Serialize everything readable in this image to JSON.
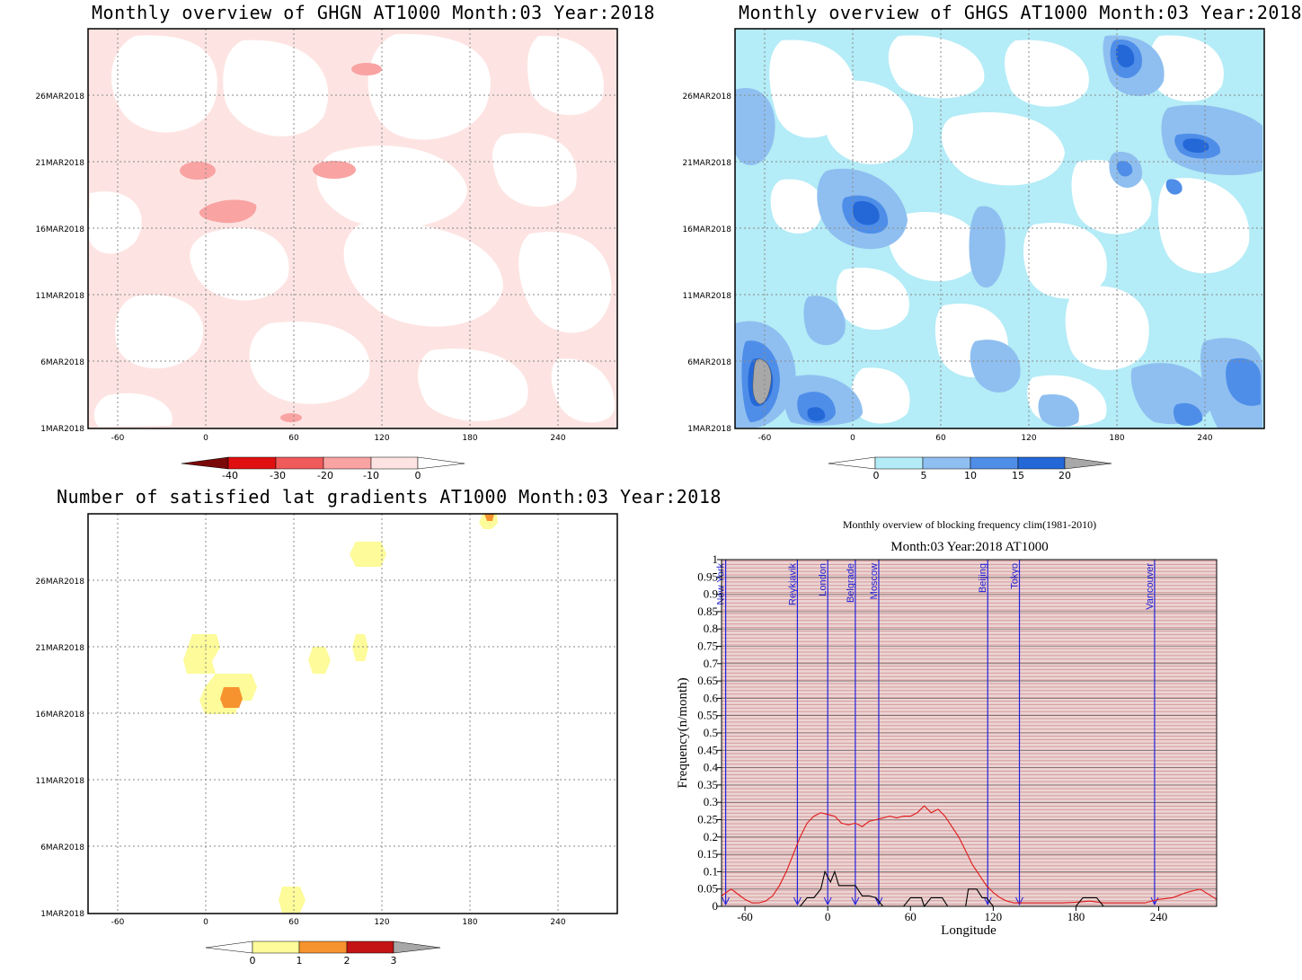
{
  "panels": {
    "ghgn": {
      "title": "Monthly overview of GHGN AT1000 Month:03 Year:2018",
      "y_ticks": [
        "1MAR2018",
        "6MAR2018",
        "11MAR2018",
        "16MAR2018",
        "21MAR2018",
        "26MAR2018"
      ],
      "x_ticks": [
        "-60",
        "0",
        "60",
        "120",
        "180",
        "240"
      ],
      "colorbar": [
        "-40",
        "-30",
        "-20",
        "-10",
        "0"
      ],
      "colors": {
        "c1": "#fde4e2",
        "c2": "#f9a3a3",
        "c3": "#f05a5a",
        "c4": "#e01010",
        "c5": "#7a0a0a"
      }
    },
    "ghgs": {
      "title": "Monthly overview of GHGS AT1000 Month:03 Year:2018",
      "y_ticks": [
        "1MAR2018",
        "6MAR2018",
        "11MAR2018",
        "16MAR2018",
        "21MAR2018",
        "26MAR2018"
      ],
      "x_ticks": [
        "-60",
        "0",
        "60",
        "120",
        "180",
        "240"
      ],
      "colorbar": [
        "0",
        "5",
        "10",
        "15",
        "20"
      ],
      "colors": {
        "c1": "#b4ecf7",
        "c2": "#8fbff0",
        "c3": "#4f8ee8",
        "c4": "#2468d8",
        "c5": "#1450b8",
        "over": "#a8a8a8"
      }
    },
    "gradients": {
      "title": "Number of satisfied lat gradients AT1000 Month:03 Year:2018",
      "y_ticks": [
        "1MAR2018",
        "6MAR2018",
        "11MAR2018",
        "16MAR2018",
        "21MAR2018",
        "26MAR2018"
      ],
      "x_ticks": [
        "-60",
        "0",
        "60",
        "120",
        "180",
        "240"
      ],
      "colorbar": [
        "0",
        "1",
        "2",
        "3"
      ],
      "colors": {
        "c1": "#fdfb9a",
        "c2": "#f7932e",
        "c3": "#c41414",
        "over": "#a8a8a8"
      }
    }
  },
  "chart_data": {
    "type": "line",
    "title": "Monthly overview of blocking frequency clim(1981-2010)",
    "subtitle": "Month:03 Year:2018  AT1000",
    "xlabel": "Longitude",
    "ylabel": "Frequency(n/month)",
    "xlim": [
      -77,
      282
    ],
    "ylim": [
      0,
      1
    ],
    "x_ticks": [
      "-60",
      "0",
      "60",
      "120",
      "180",
      "240"
    ],
    "y_ticks": [
      "0",
      "0.05",
      "0.1",
      "0.15",
      "0.2",
      "0.25",
      "0.3",
      "0.35",
      "0.4",
      "0.45",
      "0.5",
      "0.55",
      "0.6",
      "0.65",
      "0.7",
      "0.75",
      "0.8",
      "0.85",
      "0.9",
      "0.95",
      "1"
    ],
    "cities": [
      {
        "name": "New York",
        "lon": -74
      },
      {
        "name": "Reykjavik",
        "lon": -22
      },
      {
        "name": "London",
        "lon": 0
      },
      {
        "name": "Belgrade",
        "lon": 20
      },
      {
        "name": "Moscow",
        "lon": 37
      },
      {
        "name": "Beijing",
        "lon": 116
      },
      {
        "name": "Tokyo",
        "lon": 139
      },
      {
        "name": "Vancouver",
        "lon": 237
      }
    ],
    "series": [
      {
        "color": "#e01818",
        "x": [
          -77,
          -70,
          -65,
          -60,
          -55,
          -50,
          -45,
          -40,
          -35,
          -30,
          -25,
          -20,
          -15,
          -10,
          -5,
          0,
          5,
          10,
          15,
          20,
          25,
          30,
          35,
          40,
          45,
          50,
          55,
          60,
          65,
          70,
          75,
          80,
          85,
          90,
          95,
          100,
          105,
          110,
          115,
          120,
          125,
          130,
          135,
          140,
          150,
          160,
          170,
          180,
          190,
          200,
          210,
          220,
          230,
          240,
          250,
          260,
          270,
          282
        ],
        "y": [
          0.03,
          0.05,
          0.035,
          0.02,
          0.01,
          0.01,
          0.015,
          0.03,
          0.06,
          0.1,
          0.15,
          0.2,
          0.24,
          0.26,
          0.27,
          0.265,
          0.26,
          0.24,
          0.235,
          0.24,
          0.23,
          0.245,
          0.25,
          0.255,
          0.26,
          0.255,
          0.26,
          0.26,
          0.27,
          0.29,
          0.27,
          0.28,
          0.26,
          0.23,
          0.2,
          0.16,
          0.12,
          0.09,
          0.06,
          0.04,
          0.025,
          0.015,
          0.01,
          0.01,
          0.01,
          0.01,
          0.01,
          0.012,
          0.015,
          0.01,
          0.01,
          0.01,
          0.01,
          0.02,
          0.025,
          0.04,
          0.05,
          0.02
        ]
      },
      {
        "color": "#000000",
        "x": [
          -77,
          -20,
          -15,
          -10,
          -5,
          -2,
          2,
          5,
          8,
          12,
          15,
          20,
          25,
          30,
          35,
          40,
          45,
          50,
          55,
          60,
          62,
          68,
          70,
          75,
          78,
          83,
          87,
          100,
          102,
          105,
          108,
          112,
          115,
          120,
          125,
          130,
          140,
          150,
          160,
          180,
          185,
          190,
          195,
          200,
          205,
          210,
          220,
          230,
          240,
          250,
          260,
          270,
          282
        ],
        "y": [
          0,
          0,
          0.025,
          0.025,
          0.05,
          0.1,
          0.07,
          0.1,
          0.06,
          0.06,
          0.06,
          0.06,
          0.03,
          0.03,
          0.025,
          0,
          0,
          0,
          0,
          0.025,
          0.025,
          0.025,
          0,
          0.025,
          0.025,
          0.025,
          0,
          0,
          0.05,
          0.05,
          0.05,
          0.025,
          0.025,
          0,
          0,
          0,
          0,
          0,
          0,
          0,
          0.025,
          0.025,
          0.025,
          0,
          0,
          0,
          0,
          0,
          0,
          0,
          0,
          0,
          0
        ]
      }
    ]
  }
}
